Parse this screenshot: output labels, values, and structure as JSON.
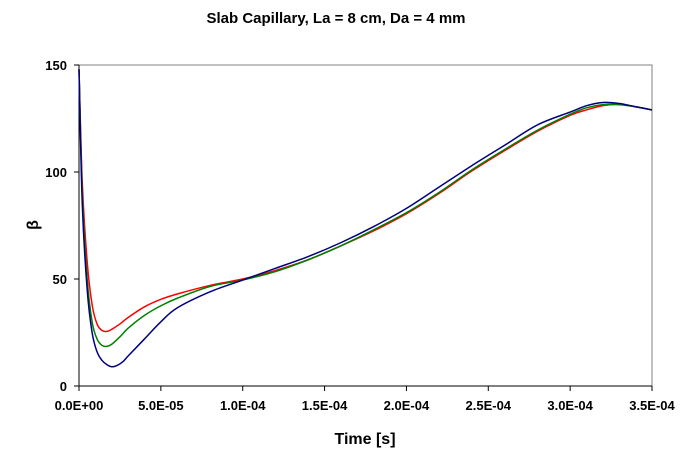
{
  "chart_data": {
    "type": "line",
    "title": "Slab Capillary, La = 8 cm, Da = 4 mm",
    "xlabel": "Time [s]",
    "ylabel": "β",
    "xlim": [
      0,
      0.00035
    ],
    "ylim": [
      0,
      150
    ],
    "x_tick_labels": [
      "0.0E+00",
      "5.0E-05",
      "1.0E-04",
      "1.5E-04",
      "2.0E-04",
      "2.5E-04",
      "3.0E-04",
      "3.5E-04"
    ],
    "x_ticks": [
      0,
      5e-05,
      0.0001,
      0.00015,
      0.0002,
      0.00025,
      0.0003,
      0.00035
    ],
    "y_tick_labels": [
      "0",
      "50",
      "100",
      "150"
    ],
    "y_ticks": [
      0,
      50,
      100,
      150
    ],
    "grid": false,
    "legend": "none",
    "series": [
      {
        "color": "#ff0000",
        "x": [
          0,
          2e-06,
          5e-06,
          8e-06,
          1.1e-05,
          1.4e-05,
          1.7e-05,
          2e-05,
          2.5e-05,
          3e-05,
          4e-05,
          5e-05,
          6e-05,
          8e-05,
          0.0001,
          0.00012,
          0.00014,
          0.00016,
          0.00018,
          0.0002,
          0.00022,
          0.00024,
          0.00026,
          0.00028,
          0.0003,
          0.00031,
          0.00032,
          0.00033,
          0.00034,
          0.00035
        ],
        "y": [
          148,
          95,
          58,
          38,
          29,
          26,
          25.5,
          26.5,
          29,
          32,
          37,
          40.5,
          43,
          47,
          50,
          54,
          59,
          65.5,
          72.5,
          80.5,
          90,
          100.5,
          110,
          119,
          126.5,
          129,
          131,
          131.5,
          130.5,
          129
        ]
      },
      {
        "color": "#008000",
        "x": [
          0,
          2e-06,
          5e-06,
          8e-06,
          1.1e-05,
          1.4e-05,
          1.7e-05,
          2e-05,
          2.5e-05,
          3e-05,
          4e-05,
          5e-05,
          6e-05,
          8e-05,
          0.0001,
          0.00012,
          0.00014,
          0.00016,
          0.00018,
          0.0002,
          0.00022,
          0.00024,
          0.00026,
          0.00028,
          0.0003,
          0.00031,
          0.00032,
          0.00033,
          0.00034,
          0.00035
        ],
        "y": [
          148,
          90,
          50,
          30,
          22,
          19,
          18.5,
          19.5,
          23,
          27,
          33,
          37.5,
          41,
          46.5,
          49.5,
          53.5,
          59,
          65.5,
          73,
          81,
          90.5,
          101,
          110.5,
          119.5,
          127,
          130,
          131.5,
          131.5,
          130.5,
          129
        ]
      },
      {
        "color": "#000080",
        "x": [
          0,
          2e-06,
          5e-06,
          8e-06,
          1.1e-05,
          1.4e-05,
          1.7e-05,
          2e-05,
          2.3e-05,
          2.7e-05,
          3e-05,
          4e-05,
          5e-05,
          6e-05,
          8e-05,
          0.0001,
          0.00012,
          0.00014,
          0.00016,
          0.00018,
          0.0002,
          0.00022,
          0.00024,
          0.00026,
          0.00028,
          0.0003,
          0.00031,
          0.00032,
          0.00033,
          0.00034,
          0.00035
        ],
        "y": [
          148,
          85,
          45,
          25,
          16,
          12,
          10,
          9,
          9.5,
          11.5,
          14,
          22,
          30,
          36.5,
          44,
          49.5,
          55,
          60.5,
          67,
          74.5,
          83,
          93,
          103,
          112.5,
          122,
          128,
          131,
          132.5,
          132,
          130.5,
          129
        ]
      }
    ]
  }
}
